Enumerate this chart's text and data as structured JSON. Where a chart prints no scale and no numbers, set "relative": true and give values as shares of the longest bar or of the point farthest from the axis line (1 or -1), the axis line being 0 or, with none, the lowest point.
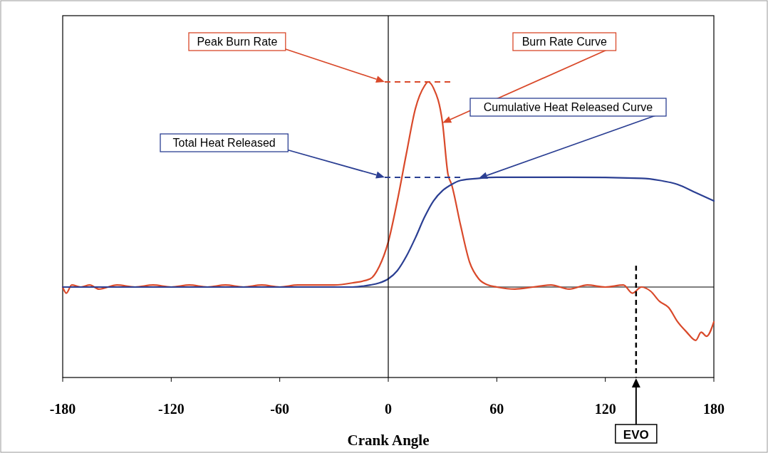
{
  "chart_data": {
    "type": "line",
    "relative": true,
    "xlabel": "Crank Angle",
    "xlim": [
      -180,
      180
    ],
    "xticks": [
      -180,
      -120,
      -60,
      0,
      60,
      120,
      180
    ],
    "grid": false,
    "marker": "none",
    "line_style": "solid",
    "series": [
      {
        "color": "#d9492a",
        "x": [
          -180,
          -178,
          -175,
          -170,
          -165,
          -160,
          -150,
          -140,
          -130,
          -120,
          -110,
          -100,
          -90,
          -80,
          -70,
          -60,
          -50,
          -40,
          -30,
          -20,
          -10,
          -5,
          0,
          5,
          10,
          15,
          20,
          22,
          25,
          30,
          33,
          35,
          40,
          45,
          50,
          55,
          60,
          70,
          80,
          90,
          100,
          110,
          120,
          130,
          135,
          140,
          145,
          150,
          155,
          160,
          165,
          170,
          173,
          176,
          180
        ],
        "values": [
          0,
          -0.03,
          0.01,
          0,
          0.01,
          -0.01,
          0.01,
          0,
          0.01,
          0,
          0.01,
          0,
          0.01,
          0,
          0.01,
          0,
          0.01,
          0.01,
          0.01,
          0.02,
          0.04,
          0.1,
          0.22,
          0.42,
          0.65,
          0.87,
          0.98,
          1,
          0.97,
          0.8,
          0.55,
          0.5,
          0.3,
          0.12,
          0.04,
          0.01,
          0,
          -0.01,
          0,
          0.01,
          -0.01,
          0.01,
          0,
          0.01,
          -0.03,
          0,
          -0.02,
          -0.07,
          -0.1,
          -0.17,
          -0.22,
          -0.26,
          -0.22,
          -0.24,
          -0.17
        ]
      },
      {
        "color": "#2b3f93",
        "x": [
          -180,
          -20,
          -10,
          -5,
          0,
          5,
          10,
          15,
          20,
          25,
          30,
          35,
          40,
          50,
          60,
          100,
          140,
          150,
          160,
          170,
          180
        ],
        "values": [
          0,
          0,
          0.01,
          0.02,
          0.04,
          0.08,
          0.15,
          0.24,
          0.34,
          0.42,
          0.47,
          0.5,
          0.52,
          0.53,
          0.535,
          0.535,
          0.53,
          0.52,
          0.5,
          0.46,
          0.42
        ]
      }
    ],
    "annotations": [
      "Peak Burn Rate",
      "Burn Rate Curve",
      "Total Heat Released",
      "Cumulative Heat Released Curve"
    ],
    "ref_lines": [
      {
        "axis": "x",
        "value": 0,
        "line_style": "solid",
        "color": "#000000"
      },
      {
        "axis": "x",
        "value": 137,
        "label": "EVO",
        "line_style": "dashed",
        "color": "#000000"
      }
    ]
  }
}
